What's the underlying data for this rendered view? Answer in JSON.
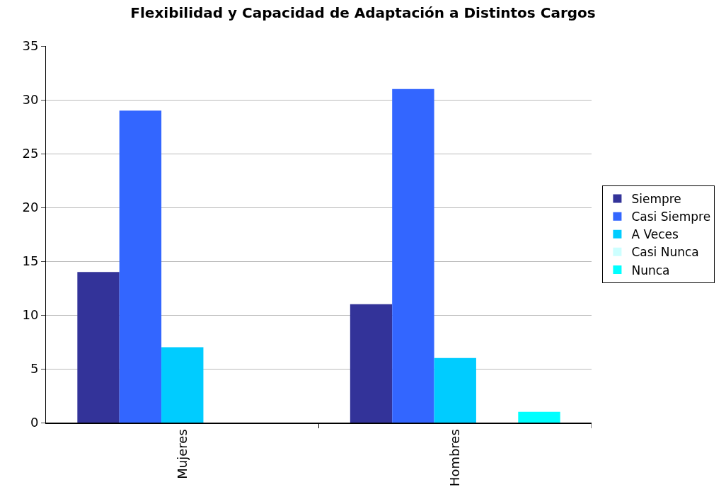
{
  "chart_data": {
    "type": "bar",
    "title": "Flexibilidad y Capacidad de Adaptación a Distintos Cargos",
    "categories": [
      "Mujeres",
      "Hombres"
    ],
    "series": [
      {
        "name": "Siempre",
        "color": "#333399",
        "values": [
          14,
          11
        ]
      },
      {
        "name": "Casi Siempre",
        "color": "#3366ff",
        "values": [
          29,
          31
        ]
      },
      {
        "name": "A Veces",
        "color": "#00ccff",
        "values": [
          7,
          6
        ]
      },
      {
        "name": "Casi Nunca",
        "color": "#ccffff",
        "values": [
          0,
          0
        ]
      },
      {
        "name": "Nunca",
        "color": "#00ffff",
        "values": [
          0,
          1
        ]
      }
    ],
    "ylim": [
      0,
      35
    ],
    "yticks": [
      0,
      5,
      10,
      15,
      20,
      25,
      30,
      35
    ],
    "grid": "y",
    "legend": "right"
  }
}
